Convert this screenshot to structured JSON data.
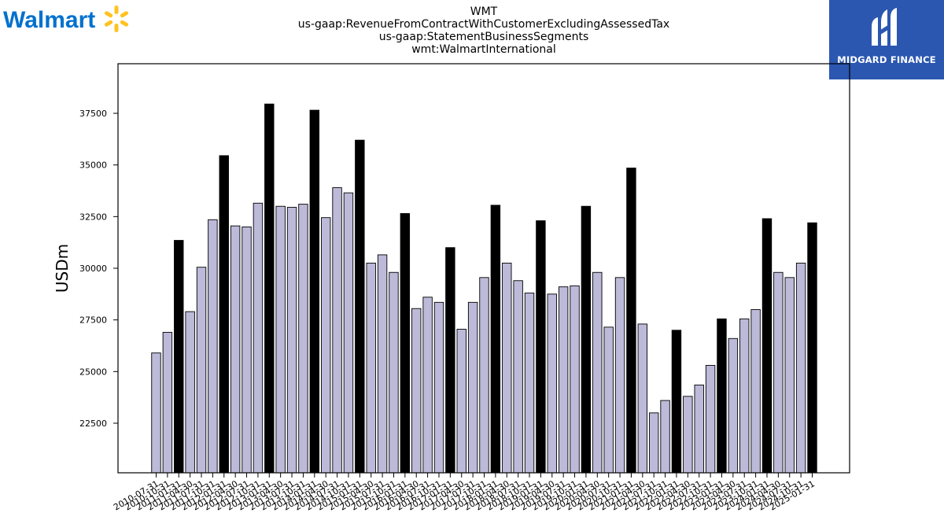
{
  "branding": {
    "left_logo_text": "Walmart",
    "left_logo_color": "#0071ce",
    "spark_color": "#ffc220",
    "right_logo_text": "MIDGARD FINANCE",
    "right_logo_bg": "#2b57b0"
  },
  "chart_data": {
    "type": "bar",
    "title_lines": [
      "WMT",
      "us-gaap:RevenueFromContractWithCustomerExcludingAssessedTax",
      "us-gaap:StatementBusinessSegments",
      "wmt:WalmartInternational"
    ],
    "xlabel": "",
    "ylabel": "USDm",
    "ylim": [
      20100,
      39900
    ],
    "yticks": [
      22500,
      25000,
      27500,
      30000,
      32500,
      35000,
      37500
    ],
    "grid": false,
    "legend": "none",
    "colors": {
      "quarter": "#bcb9d9",
      "annual": "#000000",
      "edge": "#000000"
    },
    "categories": [
      "2010-07-31",
      "2010-10-31",
      "2011-01-31",
      "2011-04-30",
      "2011-07-31",
      "2011-10-31",
      "2012-01-31",
      "2012-04-30",
      "2012-07-31",
      "2012-10-31",
      "2013-01-31",
      "2013-04-30",
      "2013-07-31",
      "2013-10-31",
      "2014-01-31",
      "2014-04-30",
      "2014-07-31",
      "2014-10-31",
      "2015-01-31",
      "2015-04-30",
      "2015-07-31",
      "2015-10-31",
      "2016-01-31",
      "2016-04-30",
      "2016-07-31",
      "2016-10-31",
      "2017-01-31",
      "2017-04-30",
      "2017-07-31",
      "2017-10-31",
      "2018-01-31",
      "2018-04-30",
      "2018-07-31",
      "2018-10-31",
      "2019-01-31",
      "2019-04-30",
      "2019-07-31",
      "2019-10-31",
      "2020-01-31",
      "2020-04-30",
      "2020-07-31",
      "2020-10-31",
      "2021-01-31",
      "2021-04-30",
      "2021-07-31",
      "2021-10-31",
      "2022-01-31",
      "2022-04-30",
      "2022-07-31",
      "2022-10-31",
      "2023-01-31",
      "2023-04-30",
      "2023-07-31",
      "2023-10-31",
      "2024-01-31",
      "2024-04-30",
      "2024-07-31",
      "2024-10-31",
      "2025-01-31"
    ],
    "values": [
      25900,
      26900,
      31350,
      27900,
      30050,
      32350,
      35450,
      32050,
      32000,
      33150,
      37950,
      33000,
      32950,
      33100,
      37650,
      32450,
      33900,
      33650,
      36200,
      30250,
      30650,
      29800,
      32650,
      28050,
      28600,
      28350,
      31000,
      27050,
      28350,
      29550,
      33050,
      30250,
      29400,
      28800,
      32300,
      28750,
      29100,
      29150,
      33000,
      29800,
      27150,
      29550,
      34850,
      27300,
      23000,
      23600,
      27000,
      23800,
      24350,
      25300,
      27550,
      26600,
      27550,
      28000,
      32400,
      29800,
      29550,
      30250,
      32200
    ],
    "annual_flags": [
      0,
      0,
      1,
      0,
      0,
      0,
      1,
      0,
      0,
      0,
      1,
      0,
      0,
      0,
      1,
      0,
      0,
      0,
      1,
      0,
      0,
      0,
      1,
      0,
      0,
      0,
      1,
      0,
      0,
      0,
      1,
      0,
      0,
      0,
      1,
      0,
      0,
      0,
      1,
      0,
      0,
      0,
      1,
      0,
      0,
      0,
      1,
      0,
      0,
      0,
      1,
      0,
      0,
      0,
      1,
      0,
      0,
      0,
      1
    ]
  }
}
